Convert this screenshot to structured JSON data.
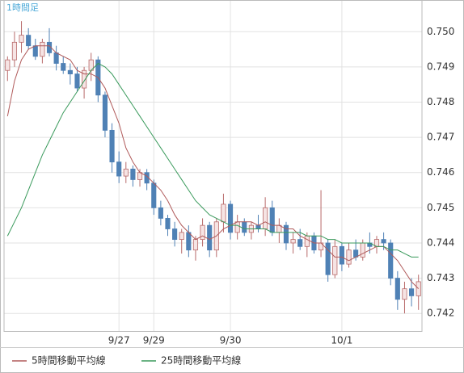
{
  "chart_data": {
    "type": "candlestick",
    "label": "1時間足",
    "categories": [
      null,
      null,
      null,
      null,
      null,
      null,
      null,
      null,
      null,
      null,
      null,
      null,
      null,
      null,
      null,
      null,
      "9/27",
      null,
      null,
      null,
      null,
      "9/29",
      null,
      null,
      null,
      null,
      null,
      null,
      null,
      null,
      null,
      null,
      "9/30",
      null,
      null,
      null,
      null,
      null,
      null,
      null,
      null,
      null,
      null,
      null,
      null,
      null,
      null,
      null,
      "10/1",
      null,
      null,
      null,
      null,
      null,
      null,
      null,
      null,
      null,
      null,
      null
    ],
    "open": [
      0.7489,
      0.7492,
      0.7497,
      0.7499,
      0.7496,
      0.7493,
      0.7497,
      0.7494,
      0.7491,
      0.7489,
      0.7488,
      0.7484,
      0.7489,
      0.7492,
      0.7482,
      0.7472,
      0.7463,
      0.7459,
      0.7461,
      0.7458,
      0.746,
      0.7457,
      0.745,
      0.7447,
      0.7444,
      0.7441,
      0.7443,
      0.7438,
      0.7441,
      0.7445,
      0.7438,
      0.7446,
      0.7451,
      0.7443,
      0.7446,
      0.7443,
      0.7445,
      0.7444,
      0.745,
      0.7443,
      0.7445,
      0.744,
      0.7441,
      0.7439,
      0.7442,
      0.7438,
      0.744,
      0.7431,
      0.7439,
      0.7434,
      0.7438,
      0.7436,
      0.744,
      0.7439,
      0.7441,
      0.744,
      0.743,
      0.7424,
      0.7427,
      0.7425
    ],
    "high": [
      0.7493,
      0.75,
      0.7503,
      0.7501,
      0.7498,
      0.7498,
      0.7501,
      0.7496,
      0.7493,
      0.7491,
      0.749,
      0.749,
      0.7494,
      0.7493,
      0.7483,
      0.7474,
      0.7466,
      0.7463,
      0.7462,
      0.7461,
      0.7461,
      0.7458,
      0.7452,
      0.7448,
      0.7446,
      0.7444,
      0.7445,
      0.7442,
      0.7447,
      0.7446,
      0.7447,
      0.7454,
      0.7452,
      0.7448,
      0.7447,
      0.7446,
      0.7448,
      0.7453,
      0.7452,
      0.7447,
      0.7446,
      0.7443,
      0.7444,
      0.7443,
      0.7443,
      0.7455,
      0.7441,
      0.7441,
      0.744,
      0.744,
      0.7441,
      0.7441,
      0.7443,
      0.7442,
      0.7443,
      0.7441,
      0.7432,
      0.7429,
      0.743,
      0.7431
    ],
    "low": [
      0.7486,
      0.749,
      0.7494,
      0.7495,
      0.7492,
      0.7491,
      0.7493,
      0.7489,
      0.7488,
      0.7485,
      0.7483,
      0.7481,
      0.7486,
      0.748,
      0.747,
      0.746,
      0.7457,
      0.7457,
      0.7456,
      0.7456,
      0.7455,
      0.7448,
      0.7445,
      0.7442,
      0.7439,
      0.7437,
      0.7436,
      0.7435,
      0.7439,
      0.7436,
      0.7436,
      0.7443,
      0.7441,
      0.7441,
      0.7442,
      0.7441,
      0.7443,
      0.7442,
      0.7442,
      0.744,
      0.7438,
      0.7437,
      0.7438,
      0.7436,
      0.7437,
      0.7436,
      0.7429,
      0.743,
      0.7432,
      0.7433,
      0.7435,
      0.7435,
      0.7437,
      0.7437,
      0.7438,
      0.7428,
      0.7421,
      0.742,
      0.7422,
      0.7421
    ],
    "close": [
      0.7492,
      0.7497,
      0.7499,
      0.7496,
      0.7493,
      0.7497,
      0.7494,
      0.7491,
      0.7489,
      0.7488,
      0.7484,
      0.7489,
      0.7492,
      0.7482,
      0.7472,
      0.7463,
      0.7459,
      0.7461,
      0.7458,
      0.746,
      0.7457,
      0.745,
      0.7447,
      0.7444,
      0.7441,
      0.7443,
      0.7438,
      0.7441,
      0.7445,
      0.7438,
      0.7446,
      0.7451,
      0.7443,
      0.7446,
      0.7443,
      0.7445,
      0.7444,
      0.745,
      0.7443,
      0.7445,
      0.744,
      0.7441,
      0.7439,
      0.7442,
      0.7438,
      0.744,
      0.7431,
      0.7439,
      0.7434,
      0.7438,
      0.7436,
      0.744,
      0.7439,
      0.7441,
      0.744,
      0.743,
      0.7424,
      0.7427,
      0.7425,
      0.7429
    ],
    "up_color": "#f6e4e4",
    "up_stroke": "#b86a6a",
    "down_color": "#4f81b5",
    "lines": [
      {
        "name": "5時間移動平均線",
        "color": "#b05a5a",
        "values": [
          0.7476,
          0.7486,
          0.7492,
          0.7495,
          0.7496,
          0.7496,
          0.7496,
          0.7494,
          0.7493,
          0.7492,
          0.7489,
          0.7488,
          0.7488,
          0.7487,
          0.7484,
          0.7479,
          0.7474,
          0.7467,
          0.7463,
          0.746,
          0.7459,
          0.7457,
          0.7455,
          0.7452,
          0.7448,
          0.7445,
          0.7443,
          0.7441,
          0.7442,
          0.7441,
          0.7442,
          0.7444,
          0.7445,
          0.7446,
          0.7446,
          0.7446,
          0.7445,
          0.7446,
          0.7445,
          0.7445,
          0.7444,
          0.7444,
          0.7442,
          0.7441,
          0.744,
          0.744,
          0.7438,
          0.7436,
          0.7436,
          0.7435,
          0.7436,
          0.7437,
          0.7438,
          0.7439,
          0.7439,
          0.7437,
          0.7435,
          0.7432,
          0.7429,
          0.7427
        ]
      },
      {
        "name": "25時間移動平均線",
        "color": "#3a9a5c",
        "values": [
          0.7442,
          0.7446,
          0.745,
          0.7455,
          0.746,
          0.7465,
          0.7469,
          0.7473,
          0.7477,
          0.748,
          0.7483,
          0.7486,
          0.7489,
          0.7491,
          0.749,
          0.7488,
          0.7485,
          0.7482,
          0.7479,
          0.7476,
          0.7473,
          0.747,
          0.7467,
          0.7464,
          0.7461,
          0.7458,
          0.7455,
          0.7452,
          0.745,
          0.7448,
          0.7447,
          0.7446,
          0.7445,
          0.7445,
          0.7444,
          0.7444,
          0.7444,
          0.7444,
          0.7443,
          0.7443,
          0.7443,
          0.7443,
          0.7443,
          0.7442,
          0.7442,
          0.7442,
          0.7441,
          0.7441,
          0.744,
          0.744,
          0.744,
          0.744,
          0.744,
          0.7439,
          0.7439,
          0.7438,
          0.7438,
          0.7437,
          0.7436,
          0.7436
        ]
      }
    ],
    "ylim": [
      0.7415,
      0.7509
    ],
    "yticks": [
      0.742,
      0.743,
      0.744,
      0.745,
      0.746,
      0.747,
      0.748,
      0.749,
      {
        "value": 0.75,
        "label": "0.750"
      }
    ],
    "grid": true
  }
}
